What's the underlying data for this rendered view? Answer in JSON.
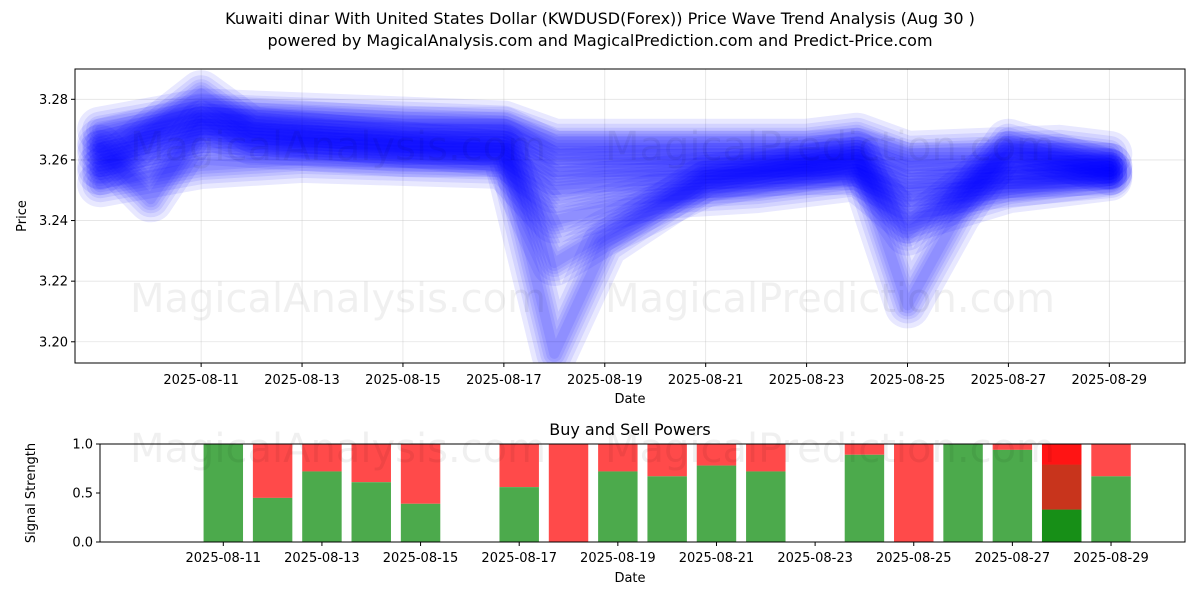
{
  "figure": {
    "title_line1": "Kuwaiti dinar With United States Dollar (KWDUSD(Forex)) Price Wave Trend Analysis (Aug 30 )",
    "title_line2": "powered by MagicalAnalysis.com and MagicalPrediction.com and Predict-Price.com",
    "watermark_left": "MagicalAnalysis.com",
    "watermark_right": "MagicalPrediction.com"
  },
  "chart_data": [
    {
      "type": "line",
      "title": "",
      "xlabel": "Date",
      "ylabel": "Price",
      "xlim": [
        "2025-08-08T12:00",
        "2025-08-30T12:00"
      ],
      "ylim": [
        3.193,
        3.29
      ],
      "x_ticks": [
        "2025-08-11",
        "2025-08-13",
        "2025-08-15",
        "2025-08-17",
        "2025-08-19",
        "2025-08-21",
        "2025-08-23",
        "2025-08-25",
        "2025-08-27",
        "2025-08-29"
      ],
      "y_ticks": [
        "3.20",
        "3.22",
        "3.24",
        "3.26",
        "3.28"
      ],
      "grid": true,
      "band_color": "#0000ff",
      "series": [
        {
          "x": [
            "2025-08-09",
            "2025-08-11",
            "2025-08-13",
            "2025-08-15",
            "2025-08-17",
            "2025-08-18",
            "2025-08-19",
            "2025-08-21",
            "2025-08-23",
            "2025-08-24",
            "2025-08-25",
            "2025-08-27",
            "2025-08-29"
          ],
          "values": [
            3.262,
            3.27,
            3.268,
            3.266,
            3.266,
            3.256,
            3.257,
            3.258,
            3.258,
            3.259,
            3.252,
            3.255,
            3.256
          ]
        },
        {
          "x": [
            "2025-08-09",
            "2025-08-11",
            "2025-08-13",
            "2025-08-15",
            "2025-08-17",
            "2025-08-18",
            "2025-08-19",
            "2025-08-21",
            "2025-08-23",
            "2025-08-24",
            "2025-08-25",
            "2025-08-27",
            "2025-08-29"
          ],
          "values": [
            3.258,
            3.266,
            3.264,
            3.262,
            3.262,
            3.25,
            3.252,
            3.255,
            3.256,
            3.256,
            3.248,
            3.252,
            3.255
          ]
        },
        {
          "x": [
            "2025-08-09",
            "2025-08-11",
            "2025-08-13",
            "2025-08-15",
            "2025-08-17",
            "2025-08-18",
            "2025-08-19",
            "2025-08-21",
            "2025-08-23",
            "2025-08-24",
            "2025-08-25",
            "2025-08-27",
            "2025-08-29"
          ],
          "values": [
            3.266,
            3.274,
            3.272,
            3.27,
            3.27,
            3.262,
            3.262,
            3.262,
            3.262,
            3.263,
            3.258,
            3.258,
            3.258
          ]
        },
        {
          "x": [
            "2025-08-09",
            "2025-08-10",
            "2025-08-11",
            "2025-08-12",
            "2025-08-17",
            "2025-08-18",
            "2025-08-19",
            "2025-08-21",
            "2025-08-24",
            "2025-08-25",
            "2025-08-26",
            "2025-08-27",
            "2025-08-29"
          ],
          "values": [
            3.264,
            3.247,
            3.272,
            3.266,
            3.264,
            3.196,
            3.232,
            3.254,
            3.262,
            3.212,
            3.242,
            3.266,
            3.256
          ]
        },
        {
          "x": [
            "2025-08-09",
            "2025-08-11",
            "2025-08-12",
            "2025-08-17",
            "2025-08-18",
            "2025-08-19",
            "2025-08-21",
            "2025-08-24",
            "2025-08-25",
            "2025-08-27",
            "2025-08-29"
          ],
          "values": [
            3.256,
            3.282,
            3.27,
            3.262,
            3.226,
            3.236,
            3.252,
            3.26,
            3.236,
            3.262,
            3.258
          ]
        },
        {
          "x": [
            "2025-08-09",
            "2025-08-11",
            "2025-08-13",
            "2025-08-17",
            "2025-08-18",
            "2025-08-20",
            "2025-08-22",
            "2025-08-24",
            "2025-08-25",
            "2025-08-27",
            "2025-08-29"
          ],
          "values": [
            3.252,
            3.258,
            3.26,
            3.258,
            3.24,
            3.248,
            3.25,
            3.254,
            3.24,
            3.25,
            3.254
          ]
        },
        {
          "x": [
            "2025-08-09",
            "2025-08-11",
            "2025-08-14",
            "2025-08-17",
            "2025-08-18",
            "2025-08-20",
            "2025-08-23",
            "2025-08-24",
            "2025-08-25",
            "2025-08-28",
            "2025-08-29"
          ],
          "values": [
            3.27,
            3.276,
            3.274,
            3.272,
            3.266,
            3.266,
            3.266,
            3.268,
            3.262,
            3.264,
            3.262
          ]
        }
      ]
    },
    {
      "type": "bar",
      "title": "Buy and Sell Powers",
      "xlabel": "Date",
      "ylabel": "Signal Strength",
      "xlim": [
        "2025-08-08T12:00",
        "2025-08-30T12:00"
      ],
      "ylim": [
        0,
        1.0
      ],
      "x_ticks": [
        "2025-08-11",
        "2025-08-13",
        "2025-08-15",
        "2025-08-17",
        "2025-08-19",
        "2025-08-21",
        "2025-08-23",
        "2025-08-25",
        "2025-08-27",
        "2025-08-29"
      ],
      "y_ticks": [
        "0.0",
        "0.5",
        "1.0"
      ],
      "buy_color": "#4caa4c",
      "sell_color": "#ff4a4a",
      "bars": [
        {
          "date": "2025-08-11",
          "buy": 1.0
        },
        {
          "date": "2025-08-12",
          "buy": 0.45
        },
        {
          "date": "2025-08-13",
          "buy": 0.72
        },
        {
          "date": "2025-08-14",
          "buy": 0.61
        },
        {
          "date": "2025-08-15",
          "buy": 0.39
        },
        {
          "date": "2025-08-17",
          "buy": 0.56
        },
        {
          "date": "2025-08-18",
          "buy": 0.0
        },
        {
          "date": "2025-08-19",
          "buy": 0.72
        },
        {
          "date": "2025-08-20",
          "buy": 0.67
        },
        {
          "date": "2025-08-21",
          "buy": 0.78
        },
        {
          "date": "2025-08-22",
          "buy": 0.72
        },
        {
          "date": "2025-08-24",
          "buy": 0.89
        },
        {
          "date": "2025-08-25",
          "buy": 0.0
        },
        {
          "date": "2025-08-26",
          "buy": 1.0
        },
        {
          "date": "2025-08-27",
          "buy": 0.94
        },
        {
          "date": "2025-08-28",
          "buy": 0.33,
          "highlight": true
        },
        {
          "date": "2025-08-29",
          "buy": 0.67
        }
      ]
    }
  ]
}
